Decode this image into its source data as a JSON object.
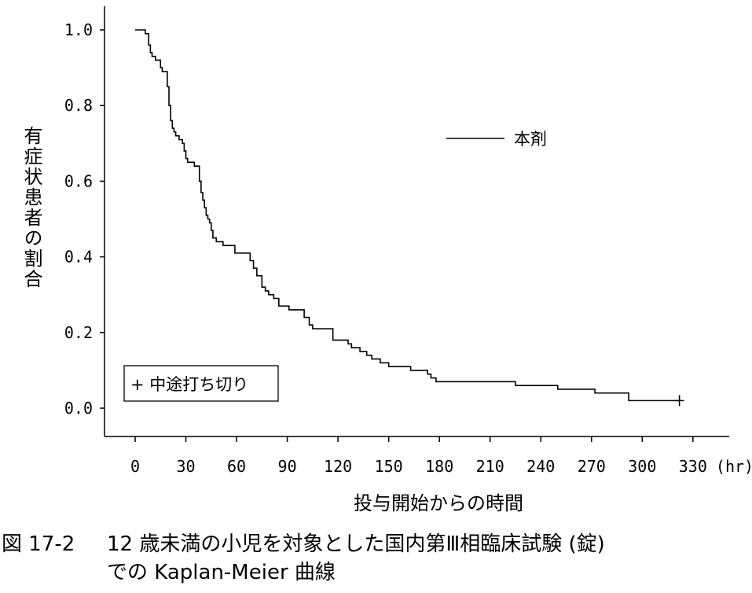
{
  "chart_data": {
    "type": "line",
    "step": true,
    "xlabel": "投与開始からの時間",
    "x_unit": "(hr)",
    "ylabel": "有症状患者の割合",
    "xlim": [
      -5,
      350
    ],
    "ylim": [
      -0.07,
      1.06
    ],
    "x_ticks": [
      0,
      30,
      60,
      90,
      120,
      150,
      180,
      210,
      240,
      270,
      300,
      330
    ],
    "x_tick_labels": [
      "0",
      "30",
      "60",
      "90",
      "120",
      "150",
      "180",
      "210",
      "240",
      "270",
      "300",
      "330"
    ],
    "y_ticks": [
      0.0,
      0.2,
      0.4,
      0.6,
      0.8,
      1.0
    ],
    "y_tick_labels": [
      "0.0",
      "0.2",
      "0.4",
      "0.6",
      "0.8",
      "1.0"
    ],
    "legend": {
      "line_label": "本剤",
      "censor_label": "+ 中途打ち切り"
    },
    "series": [
      {
        "name": "本剤",
        "x": [
          0,
          6,
          8,
          9,
          10,
          12,
          15,
          16,
          19,
          20,
          21,
          22,
          23,
          24,
          26,
          28,
          29,
          30,
          31,
          32,
          35,
          38,
          39,
          40,
          41,
          42,
          43,
          44,
          45,
          46,
          48,
          52,
          59,
          68,
          70,
          72,
          75,
          77,
          79,
          82,
          85,
          91,
          100,
          103,
          105,
          107,
          117,
          126,
          128,
          133,
          137,
          140,
          145,
          150,
          163,
          171,
          173,
          175,
          178,
          225,
          250,
          272,
          292,
          322
        ],
        "y": [
          1.0,
          0.99,
          0.96,
          0.94,
          0.93,
          0.92,
          0.9,
          0.89,
          0.85,
          0.8,
          0.76,
          0.74,
          0.73,
          0.72,
          0.71,
          0.7,
          0.68,
          0.66,
          0.65,
          0.65,
          0.64,
          0.6,
          0.57,
          0.55,
          0.53,
          0.51,
          0.5,
          0.49,
          0.47,
          0.45,
          0.44,
          0.43,
          0.41,
          0.39,
          0.37,
          0.35,
          0.32,
          0.31,
          0.3,
          0.29,
          0.27,
          0.26,
          0.24,
          0.22,
          0.21,
          0.21,
          0.18,
          0.17,
          0.16,
          0.15,
          0.14,
          0.13,
          0.12,
          0.11,
          0.1,
          0.1,
          0.09,
          0.08,
          0.07,
          0.06,
          0.05,
          0.04,
          0.02,
          0.02
        ],
        "censored_x": [
          322
        ],
        "censored_y": [
          0.02
        ]
      }
    ]
  },
  "caption": {
    "line1_number": "図 17-2",
    "line1_text": "12 歳未満の小児を対象とした国内第Ⅲ相臨床試験 (錠)",
    "line2_text": "での Kaplan-Meier 曲線"
  },
  "colors": {
    "line": "#000000",
    "background": "#ffffff"
  }
}
